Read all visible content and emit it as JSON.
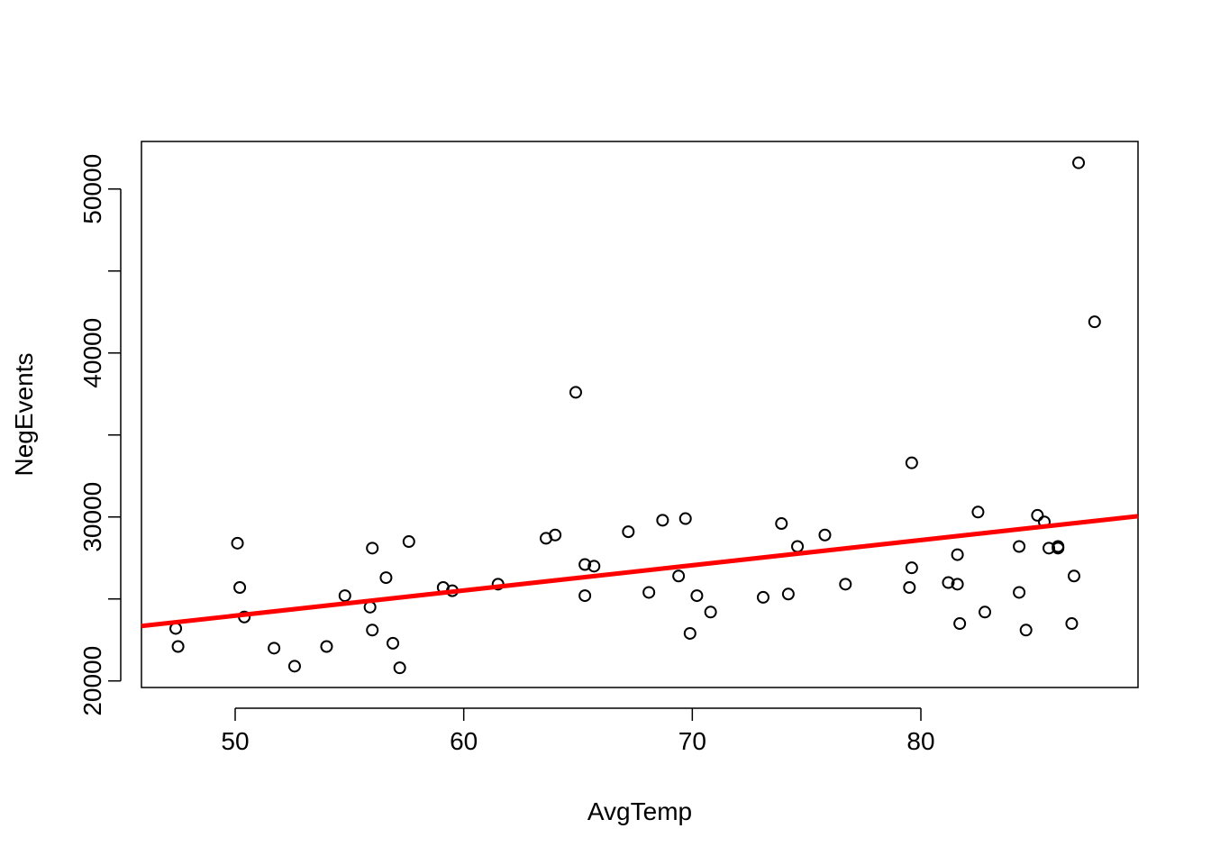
{
  "chart_data": {
    "type": "scatter",
    "title": "",
    "xlabel": "AvgTemp",
    "ylabel": "NegEvents",
    "xlim": [
      45.9,
      89.5
    ],
    "ylim": [
      19600,
      52900
    ],
    "xticks": [
      50,
      60,
      70,
      80
    ],
    "yticks": [
      20000,
      25000,
      30000,
      35000,
      40000,
      45000,
      50000
    ],
    "ytick_labels": [
      "20000",
      "",
      "30000",
      "",
      "40000",
      "",
      "50000"
    ],
    "xtick_labels": [
      "50",
      "60",
      "70",
      "80"
    ],
    "grid": false,
    "legend": "none",
    "colors": {
      "points": "#000000",
      "fit_line": "#ff0000"
    },
    "points": [
      [
        47.4,
        23200
      ],
      [
        47.5,
        22100
      ],
      [
        50.1,
        28400
      ],
      [
        50.2,
        25700
      ],
      [
        50.4,
        23900
      ],
      [
        51.7,
        22000
      ],
      [
        52.6,
        20900
      ],
      [
        54.0,
        22100
      ],
      [
        54.8,
        25200
      ],
      [
        55.9,
        24500
      ],
      [
        56.0,
        23100
      ],
      [
        56.0,
        28100
      ],
      [
        56.6,
        26300
      ],
      [
        56.9,
        22300
      ],
      [
        57.2,
        20800
      ],
      [
        57.6,
        28500
      ],
      [
        59.1,
        25700
      ],
      [
        59.5,
        25500
      ],
      [
        61.5,
        25900
      ],
      [
        63.6,
        28700
      ],
      [
        64.0,
        28900
      ],
      [
        64.9,
        37600
      ],
      [
        65.3,
        27100
      ],
      [
        65.3,
        25200
      ],
      [
        65.7,
        27000
      ],
      [
        67.2,
        29100
      ],
      [
        68.1,
        25400
      ],
      [
        68.7,
        29800
      ],
      [
        69.4,
        26400
      ],
      [
        69.7,
        29900
      ],
      [
        69.9,
        22900
      ],
      [
        70.2,
        25200
      ],
      [
        70.8,
        24200
      ],
      [
        73.1,
        25100
      ],
      [
        73.9,
        29600
      ],
      [
        74.2,
        25300
      ],
      [
        74.6,
        28200
      ],
      [
        75.8,
        28900
      ],
      [
        76.7,
        25900
      ],
      [
        79.5,
        25700
      ],
      [
        79.6,
        26900
      ],
      [
        79.6,
        33300
      ],
      [
        81.2,
        26000
      ],
      [
        81.6,
        25900
      ],
      [
        81.6,
        27700
      ],
      [
        81.7,
        23500
      ],
      [
        82.5,
        30300
      ],
      [
        82.8,
        24200
      ],
      [
        84.3,
        25400
      ],
      [
        84.3,
        28200
      ],
      [
        84.6,
        23100
      ],
      [
        85.1,
        30100
      ],
      [
        85.4,
        29700
      ],
      [
        85.6,
        28100
      ],
      [
        86.0,
        28100
      ],
      [
        86.0,
        28200
      ],
      [
        86.6,
        23500
      ],
      [
        86.7,
        26400
      ],
      [
        86.9,
        51600
      ],
      [
        87.6,
        41900
      ]
    ],
    "fit_line": {
      "x": [
        45.9,
        89.5
      ],
      "y": [
        23350,
        30050
      ]
    }
  }
}
